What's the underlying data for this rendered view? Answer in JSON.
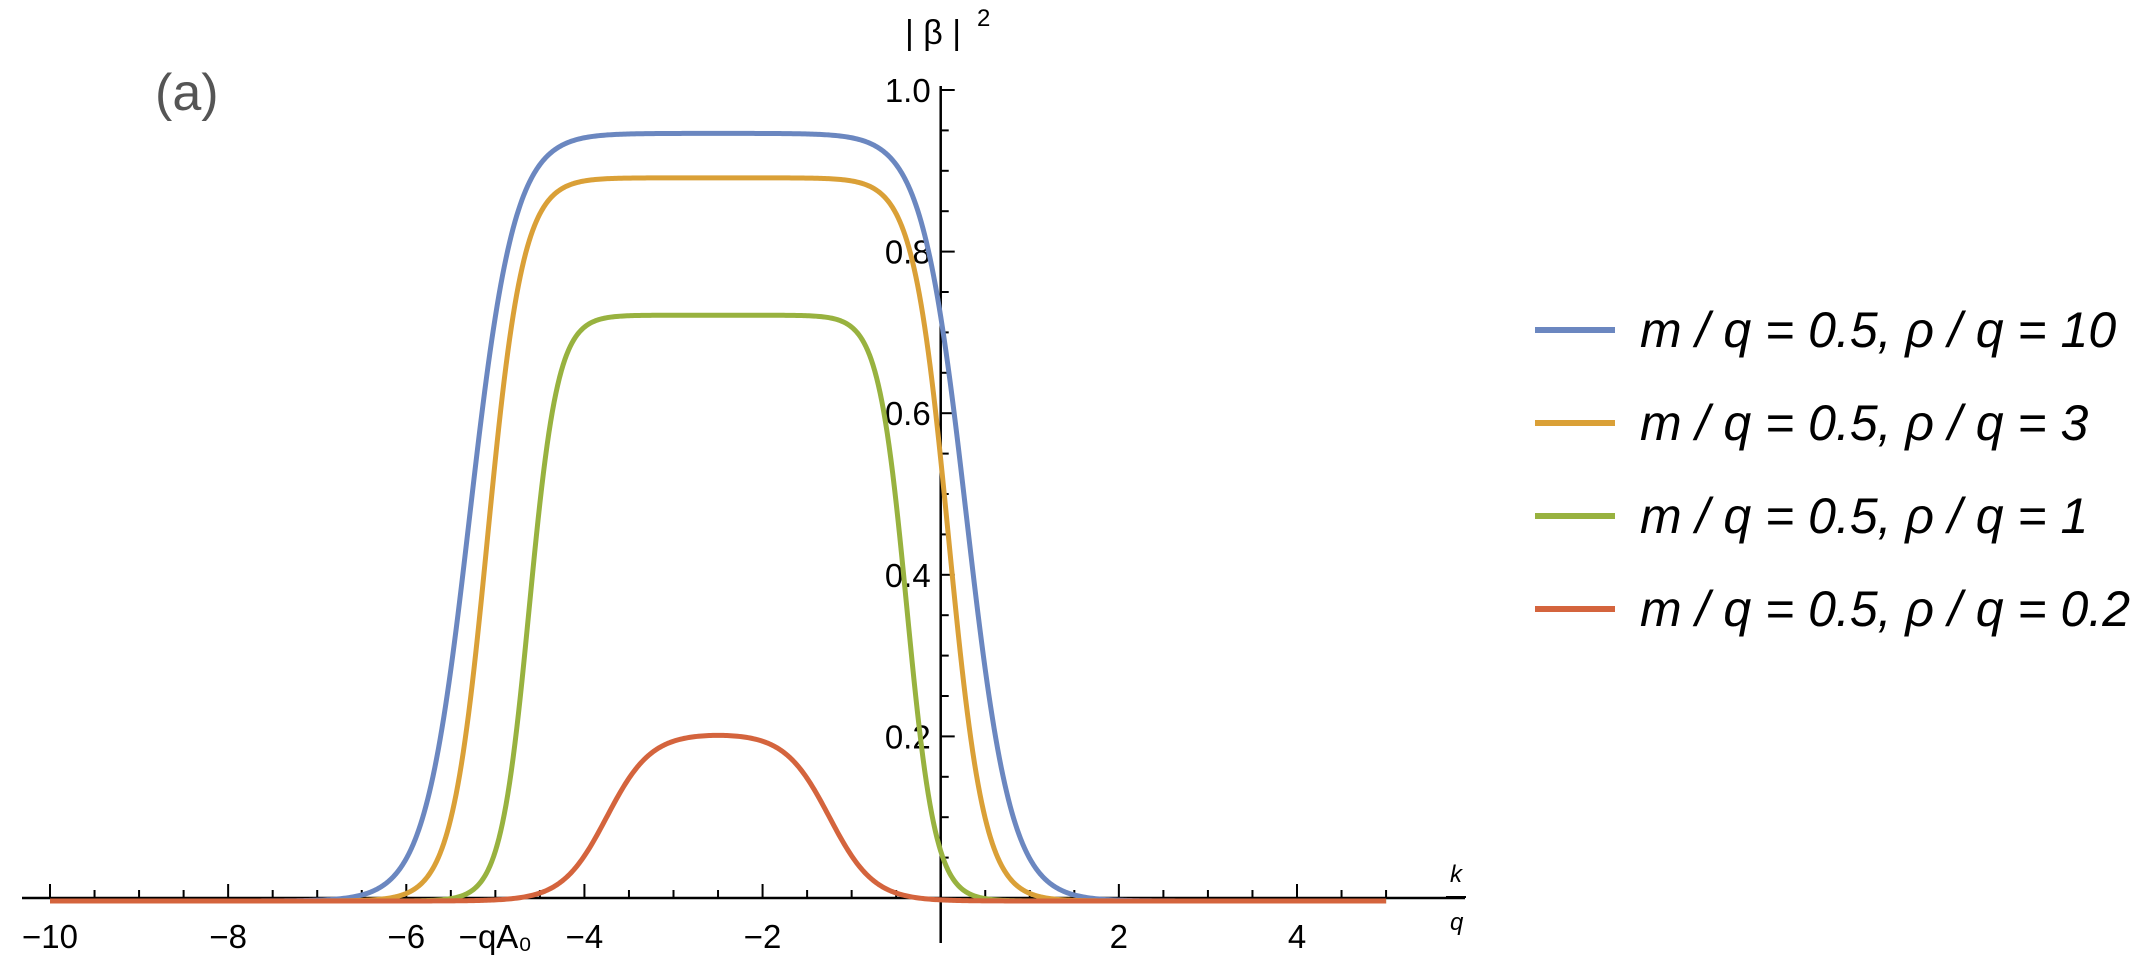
{
  "chart_data": {
    "type": "line",
    "panel_label": "(a)",
    "ylabel": "| β |",
    "ylabel_sup": "2",
    "xlabel_num": "k",
    "xlabel_den": "q",
    "xlim": [
      -10.3,
      5.3
    ],
    "ylim": [
      0,
      1.0
    ],
    "x_ticks": [
      -10,
      -8,
      -6,
      -4,
      -2,
      2,
      4
    ],
    "x_tick_labels": [
      "−10",
      "−8",
      "−6",
      "−4",
      "−2",
      "2",
      "4"
    ],
    "y_ticks": [
      0.2,
      0.4,
      0.6,
      0.8,
      1.0
    ],
    "y_tick_labels": [
      "0.2",
      "0.4",
      "0.6",
      "0.8",
      "1.0"
    ],
    "annotation": {
      "text": "−qA₀",
      "x": -5,
      "y": 0
    },
    "grid": false,
    "legend_position": "right",
    "series": [
      {
        "name": "m / q = 0.5,  ρ / q = 10",
        "color": "#6b87c0",
        "peak": 0.95,
        "center": -2.5,
        "edge": 2.79,
        "width": 0.25
      },
      {
        "name": "m / q = 0.5,  ρ / q = 3",
        "color": "#daa037",
        "peak": 0.895,
        "center": -2.5,
        "edge": 2.59,
        "width": 0.2
      },
      {
        "name": "m / q = 0.5,  ρ / q = 1",
        "color": "#98b23f",
        "peak": 0.725,
        "center": -2.5,
        "edge": 2.12,
        "width": 0.16
      },
      {
        "name": "m / q = 0.5,  ρ / q = 0.2",
        "color": "#d4643d",
        "peak": 0.205,
        "center": -2.5,
        "edge": 1.25,
        "width": 0.25
      }
    ]
  }
}
